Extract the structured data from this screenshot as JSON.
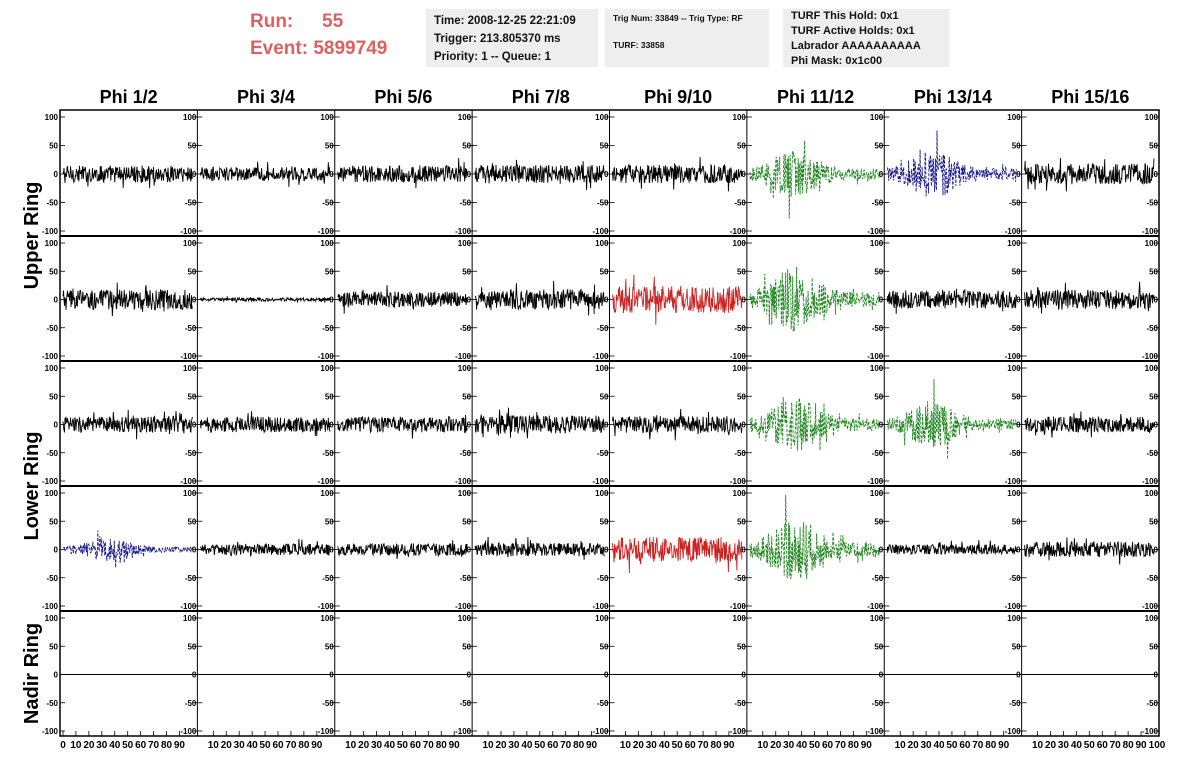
{
  "header": {
    "run_label": "Run:",
    "run_value": "55",
    "event_label": "Event:",
    "event_value": "5899749",
    "time_box": [
      "Time: 2008-12-25 22:21:09",
      "Trigger: 213.805370 ms",
      "Priority: 1 -- Queue: 1"
    ],
    "trig_box": [
      "Trig Num: 33849 -- Trig Type: RF",
      "TURF: 33858"
    ],
    "turf_box": [
      "TURF This Hold: 0x1",
      "TURF Active Holds: 0x1",
      "Labrador AAAAAAAAAA",
      "Phi Mask: 0x1c00"
    ]
  },
  "chart_data": {
    "type": "line",
    "columns": [
      "Phi 1/2",
      "Phi 3/4",
      "Phi 5/6",
      "Phi 7/8",
      "Phi 9/10",
      "Phi 11/12",
      "Phi 13/14",
      "Phi 15/16"
    ],
    "ring_labels": [
      "Upper Ring",
      "Lower Ring",
      "Nadir Ring"
    ],
    "ylim": [
      -100,
      100
    ],
    "yticks": [
      "100",
      "50",
      "0",
      "-50",
      "-100"
    ],
    "xlim": [
      0,
      100
    ],
    "xticks": [
      "0",
      "10",
      "20",
      "30",
      "40",
      "50",
      "60",
      "70",
      "80",
      "90",
      "100"
    ],
    "xticks_interior": [
      "10",
      "20",
      "30",
      "40",
      "50",
      "60",
      "70",
      "80",
      "90"
    ],
    "grid": false,
    "colors": {
      "normal": "#000000",
      "triggered": "#cc2222",
      "masked": "#228822",
      "active": "#1a1a8c"
    },
    "panels": [
      [
        {
          "style": "normal",
          "amp": 15
        },
        {
          "style": "normal",
          "amp": 12
        },
        {
          "style": "normal",
          "amp": 15
        },
        {
          "style": "normal",
          "amp": 16
        },
        {
          "style": "normal",
          "amp": 16
        },
        {
          "style": "masked",
          "amp": 28
        },
        {
          "style": "active",
          "amp": 28
        },
        {
          "style": "normal",
          "amp": 18
        }
      ],
      [
        {
          "style": "normal",
          "amp": 18
        },
        {
          "style": "normal",
          "amp": 3
        },
        {
          "style": "normal",
          "amp": 14
        },
        {
          "style": "normal",
          "amp": 18
        },
        {
          "style": "triggered",
          "amp": 24
        },
        {
          "style": "masked",
          "amp": 38
        },
        {
          "style": "normal",
          "amp": 16
        },
        {
          "style": "normal",
          "amp": 17
        }
      ],
      [
        {
          "style": "normal",
          "amp": 14
        },
        {
          "style": "normal",
          "amp": 14
        },
        {
          "style": "normal",
          "amp": 14
        },
        {
          "style": "normal",
          "amp": 16
        },
        {
          "style": "normal",
          "amp": 15
        },
        {
          "style": "masked",
          "amp": 32
        },
        {
          "style": "masked",
          "amp": 28
        },
        {
          "style": "normal",
          "amp": 14
        }
      ],
      [
        {
          "style": "active",
          "amp": 14
        },
        {
          "style": "normal",
          "amp": 10
        },
        {
          "style": "normal",
          "amp": 11
        },
        {
          "style": "normal",
          "amp": 12
        },
        {
          "style": "triggered",
          "amp": 22
        },
        {
          "style": "masked",
          "amp": 38
        },
        {
          "style": "normal",
          "amp": 9
        },
        {
          "style": "normal",
          "amp": 14
        }
      ],
      [
        {
          "style": "normal",
          "amp": 0
        },
        {
          "style": "normal",
          "amp": 0
        },
        {
          "style": "normal",
          "amp": 0
        },
        {
          "style": "normal",
          "amp": 0
        },
        {
          "style": "normal",
          "amp": 0
        },
        {
          "style": "normal",
          "amp": 0
        },
        {
          "style": "normal",
          "amp": 0
        },
        {
          "style": "normal",
          "amp": 0
        }
      ]
    ]
  }
}
